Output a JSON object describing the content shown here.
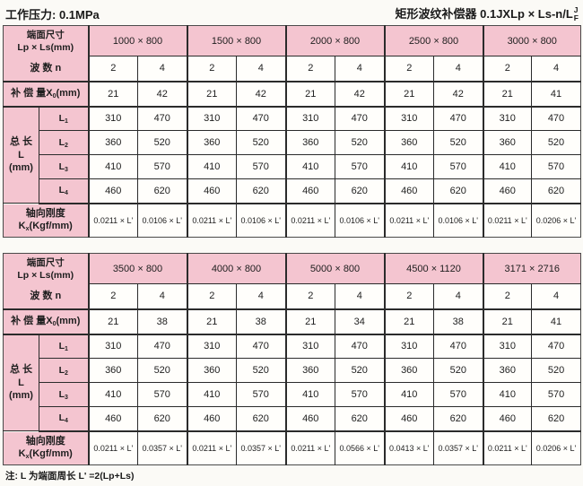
{
  "page": {
    "pressure_label": "工作压力: 0.1MPa",
    "product_title": "矩形波纹补偿器 0.1JXLp × Ls-n/L",
    "product_title_sup": "J",
    "product_title_sub": "F",
    "footnote": "注: L 为端面周长 L' =2(Lp+Ls)"
  },
  "labels": {
    "corner_line1": "端面尺寸",
    "corner_line2": "Lp × Ls(mm)",
    "wave": "波  数  n",
    "comp_base": "补 偿 量X",
    "comp_sub": "0",
    "comp_unit": "(mm)",
    "length_line1": "总  长",
    "length_line2": "L",
    "length_line3": "(mm)",
    "sub_base": "L",
    "sub_1": "1",
    "sub_2": "2",
    "sub_3": "3",
    "sub_4": "4",
    "stiff_line1": "轴向刚度",
    "stiff_base": "K",
    "stiff_sub": "x",
    "stiff_unit": "(Kgf/mm)"
  },
  "table1": {
    "sizes": [
      "1000 × 800",
      "1500 × 800",
      "2000 × 800",
      "2500 × 800",
      "3000 × 800"
    ],
    "wave": [
      "2",
      "4",
      "2",
      "4",
      "2",
      "4",
      "2",
      "4",
      "2",
      "4"
    ],
    "comp": [
      "21",
      "42",
      "21",
      "42",
      "21",
      "42",
      "21",
      "42",
      "21",
      "41"
    ],
    "L1": [
      "310",
      "470",
      "310",
      "470",
      "310",
      "470",
      "310",
      "470",
      "310",
      "470"
    ],
    "L2": [
      "360",
      "520",
      "360",
      "520",
      "360",
      "520",
      "360",
      "520",
      "360",
      "520"
    ],
    "L3": [
      "410",
      "570",
      "410",
      "570",
      "410",
      "570",
      "410",
      "570",
      "410",
      "570"
    ],
    "L4": [
      "460",
      "620",
      "460",
      "620",
      "460",
      "620",
      "460",
      "620",
      "460",
      "620"
    ],
    "stiff": [
      "0.0211 × L'",
      "0.0106 × L'",
      "0.0211 × L'",
      "0.0106 × L'",
      "0.0211 × L'",
      "0.0106 × L'",
      "0.0211 × L'",
      "0.0106 × L'",
      "0.0211 × L'",
      "0.0206 × L'"
    ]
  },
  "table2": {
    "sizes": [
      "3500 × 800",
      "4000 × 800",
      "5000 × 800",
      "4500 × 1120",
      "3171 × 2716"
    ],
    "wave": [
      "2",
      "4",
      "2",
      "4",
      "2",
      "4",
      "2",
      "4",
      "2",
      "4"
    ],
    "comp": [
      "21",
      "38",
      "21",
      "38",
      "21",
      "34",
      "21",
      "38",
      "21",
      "41"
    ],
    "L1": [
      "310",
      "470",
      "310",
      "470",
      "310",
      "470",
      "310",
      "470",
      "310",
      "470"
    ],
    "L2": [
      "360",
      "520",
      "360",
      "520",
      "360",
      "520",
      "360",
      "520",
      "360",
      "520"
    ],
    "L3": [
      "410",
      "570",
      "410",
      "570",
      "410",
      "570",
      "410",
      "570",
      "410",
      "570"
    ],
    "L4": [
      "460",
      "620",
      "460",
      "620",
      "460",
      "620",
      "460",
      "620",
      "460",
      "620"
    ],
    "stiff": [
      "0.0211 × L'",
      "0.0357 × L'",
      "0.0211 × L'",
      "0.0357 × L'",
      "0.0211 × L'",
      "0.0566 × L'",
      "0.0413 × L'",
      "0.0357 × L'",
      "0.0211 × L'",
      "0.0206 × L'"
    ]
  },
  "colors": {
    "pink": "#f4c5d0",
    "line": "#2b2b2b",
    "cell": "#fffefb"
  }
}
